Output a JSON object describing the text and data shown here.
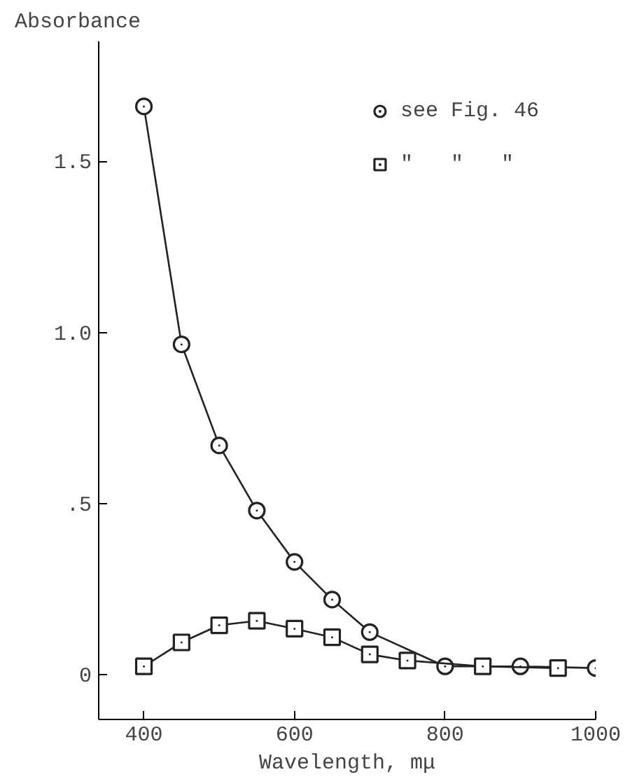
{
  "chart_data": {
    "type": "line",
    "xlabel": "Wavelength, mμ",
    "ylabel": "Absorbance",
    "xlim": [
      340,
      1000
    ],
    "ylim": [
      -0.13,
      1.85
    ],
    "xticks": [
      400,
      600,
      800,
      1000
    ],
    "yticks": [
      0,
      {
        "value": 0.5,
        "label": ".5"
      },
      {
        "value": 1.0,
        "label": "1.0"
      },
      {
        "value": 1.5,
        "label": "1.5"
      }
    ],
    "grid": false,
    "legend": "top right",
    "line_style": "solid",
    "series": [
      {
        "name": "see Fig. 46",
        "color": "#222222",
        "marker": "circle",
        "x": [
          400,
          450,
          500,
          550,
          600,
          650,
          700,
          800,
          900,
          1000
        ],
        "values": [
          1.66,
          0.965,
          0.67,
          0.48,
          0.33,
          0.22,
          0.125,
          0.025,
          0.025,
          0.02
        ]
      },
      {
        "name": "\"   \"   \"",
        "color": "#222222",
        "marker": "square",
        "x": [
          400,
          450,
          500,
          550,
          600,
          650,
          700,
          750,
          850,
          950
        ],
        "values": [
          0.025,
          0.095,
          0.145,
          0.158,
          0.135,
          0.11,
          0.06,
          0.042,
          0.025,
          0.02
        ]
      }
    ]
  }
}
